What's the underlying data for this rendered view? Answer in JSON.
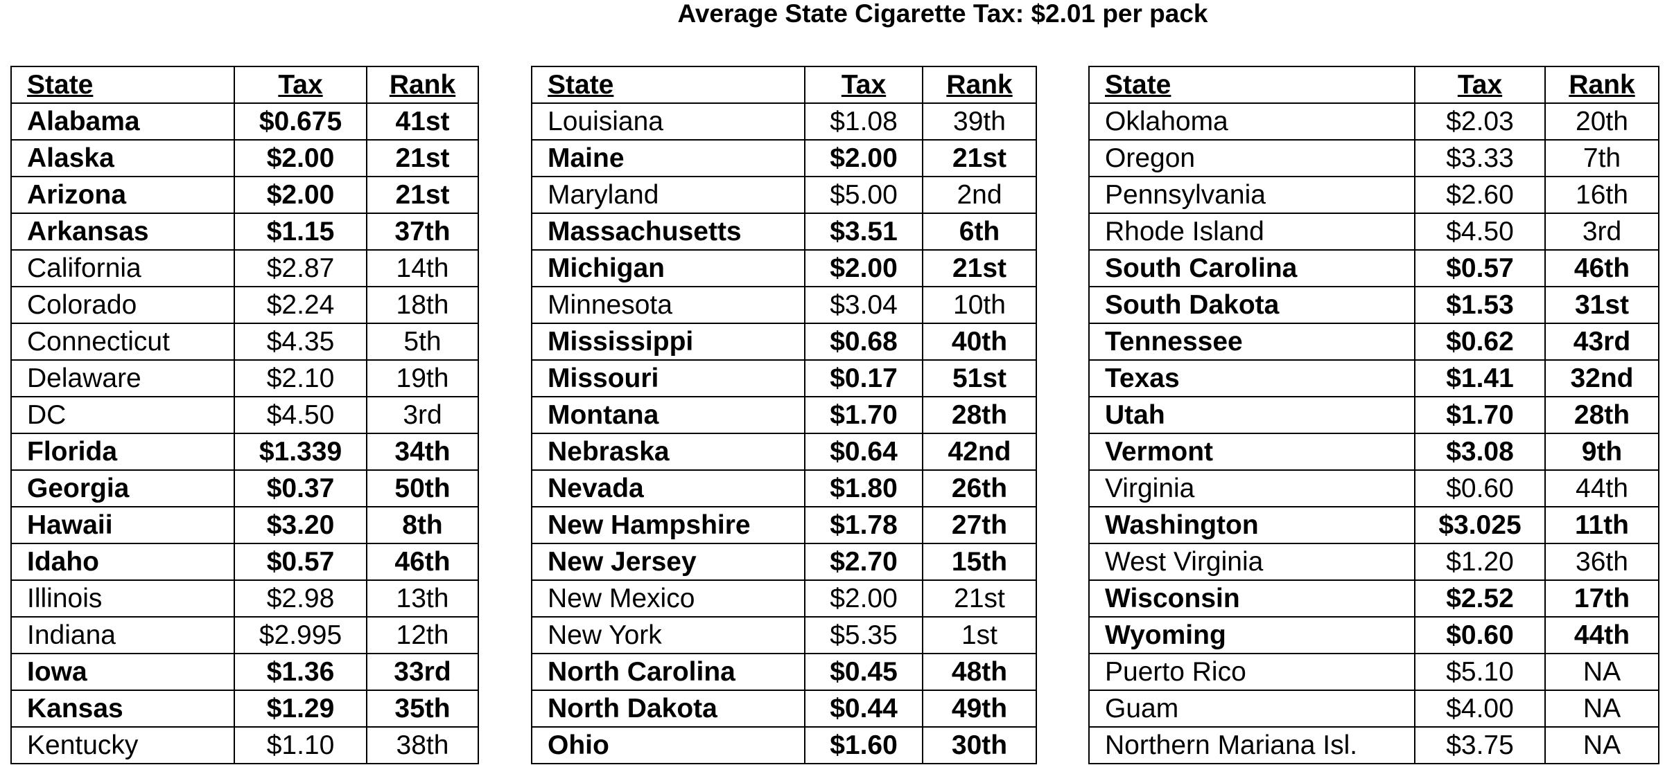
{
  "title": "Average State Cigarette Tax:  $2.01 per pack",
  "tables": [
    {
      "header": [
        "State",
        "Tax",
        "Rank"
      ],
      "rows": [
        [
          "Alabama",
          "$0.675",
          "41st"
        ],
        [
          "Alaska",
          "$2.00",
          "21st"
        ],
        [
          "Arizona",
          "$2.00",
          "21st"
        ],
        [
          "Arkansas",
          "$1.15",
          "37th"
        ],
        [
          "California",
          "$2.87",
          "14th"
        ],
        [
          "Colorado",
          "$2.24",
          "18th"
        ],
        [
          "Connecticut",
          "$4.35",
          "5th"
        ],
        [
          "Delaware",
          "$2.10",
          "19th"
        ],
        [
          "DC",
          "$4.50",
          "3rd"
        ],
        [
          "Florida",
          "$1.339",
          "34th"
        ],
        [
          "Georgia",
          "$0.37",
          "50th"
        ],
        [
          "Hawaii",
          "$3.20",
          "8th"
        ],
        [
          "Idaho",
          "$0.57",
          "46th"
        ],
        [
          "Illinois",
          "$2.98",
          "13th"
        ],
        [
          "Indiana",
          "$2.995",
          "12th"
        ],
        [
          "Iowa",
          "$1.36",
          "33rd"
        ],
        [
          "Kansas",
          "$1.29",
          "35th"
        ],
        [
          "Kentucky",
          "$1.10",
          "38th"
        ]
      ],
      "bold": [
        true,
        true,
        true,
        true,
        false,
        false,
        false,
        false,
        false,
        true,
        true,
        true,
        true,
        false,
        false,
        true,
        true,
        false
      ]
    },
    {
      "header": [
        "State",
        "Tax",
        "Rank"
      ],
      "rows": [
        [
          "Louisiana",
          "$1.08",
          "39th"
        ],
        [
          "Maine",
          "$2.00",
          "21st"
        ],
        [
          "Maryland",
          "$5.00",
          "2nd"
        ],
        [
          "Massachusetts",
          "$3.51",
          "6th"
        ],
        [
          "Michigan",
          "$2.00",
          "21st"
        ],
        [
          "Minnesota",
          "$3.04",
          "10th"
        ],
        [
          "Mississippi",
          "$0.68",
          "40th"
        ],
        [
          "Missouri",
          "$0.17",
          "51st"
        ],
        [
          "Montana",
          "$1.70",
          "28th"
        ],
        [
          "Nebraska",
          "$0.64",
          "42nd"
        ],
        [
          "Nevada",
          "$1.80",
          "26th"
        ],
        [
          "New Hampshire",
          "$1.78",
          "27th"
        ],
        [
          "New Jersey",
          "$2.70",
          "15th"
        ],
        [
          "New Mexico",
          "$2.00",
          "21st"
        ],
        [
          "New York",
          "$5.35",
          "1st"
        ],
        [
          "North Carolina",
          "$0.45",
          "48th"
        ],
        [
          "North Dakota",
          "$0.44",
          "49th"
        ],
        [
          "Ohio",
          "$1.60",
          "30th"
        ]
      ],
      "bold": [
        false,
        true,
        false,
        true,
        true,
        false,
        true,
        true,
        true,
        true,
        true,
        true,
        true,
        false,
        false,
        true,
        true,
        true
      ]
    },
    {
      "header": [
        "State",
        "Tax",
        "Rank"
      ],
      "rows": [
        [
          "Oklahoma",
          "$2.03",
          "20th"
        ],
        [
          "Oregon",
          "$3.33",
          "7th"
        ],
        [
          "Pennsylvania",
          "$2.60",
          "16th"
        ],
        [
          "Rhode Island",
          "$4.50",
          "3rd"
        ],
        [
          "South Carolina",
          "$0.57",
          "46th"
        ],
        [
          "South Dakota",
          "$1.53",
          "31st"
        ],
        [
          "Tennessee",
          "$0.62",
          "43rd"
        ],
        [
          "Texas",
          "$1.41",
          "32nd"
        ],
        [
          "Utah",
          "$1.70",
          "28th"
        ],
        [
          "Vermont",
          "$3.08",
          "9th"
        ],
        [
          "Virginia",
          "$0.60",
          "44th"
        ],
        [
          "Washington",
          "$3.025",
          "11th"
        ],
        [
          "West Virginia",
          "$1.20",
          "36th"
        ],
        [
          "Wisconsin",
          "$2.52",
          "17th"
        ],
        [
          "Wyoming",
          "$0.60",
          "44th"
        ],
        [
          "Puerto Rico",
          "$5.10",
          "NA"
        ],
        [
          "Guam",
          "$4.00",
          "NA"
        ],
        [
          "Northern Mariana Isl.",
          "$3.75",
          "NA"
        ]
      ],
      "bold": [
        false,
        false,
        false,
        false,
        true,
        true,
        true,
        true,
        true,
        true,
        false,
        true,
        false,
        true,
        true,
        false,
        false,
        false
      ]
    }
  ]
}
